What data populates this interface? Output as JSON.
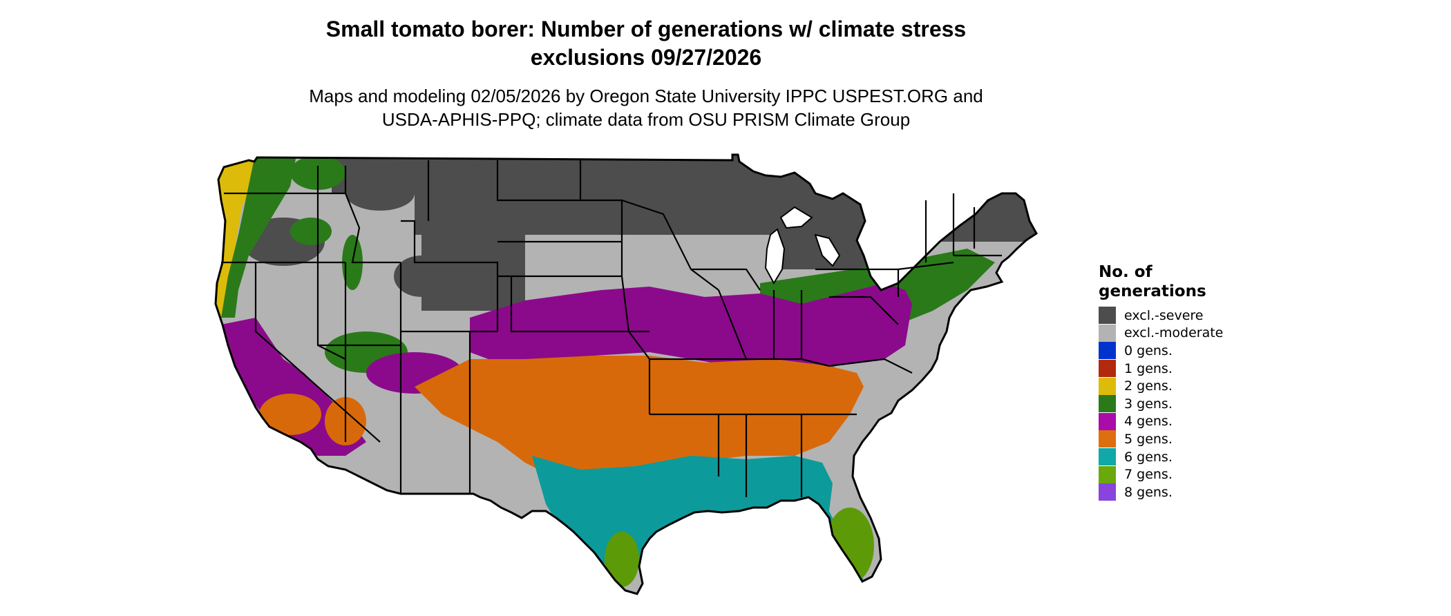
{
  "title_line1": "Small tomato borer: Number of generations w/ climate stress",
  "title_line2": "exclusions 09/27/2026",
  "subtitle_line1": "Maps and modeling 02/05/2026 by Oregon State University IPPC USPEST.ORG and",
  "subtitle_line2": "USDA-APHIS-PPQ; climate data from OSU PRISM Climate Group",
  "legend": {
    "title": "No. of generations",
    "items": [
      {
        "label": "excl.-severe",
        "color": "#4d4d4d"
      },
      {
        "label": "excl.-moderate",
        "color": "#b3b3b3"
      },
      {
        "label": "0 gens.",
        "color": "#0033cc"
      },
      {
        "label": "1 gens.",
        "color": "#b22a0e"
      },
      {
        "label": "2 gens.",
        "color": "#ddbb0a"
      },
      {
        "label": "3 gens.",
        "color": "#2a7a1a"
      },
      {
        "label": "4 gens.",
        "color": "#aa0caa"
      },
      {
        "label": "5 gens.",
        "color": "#dd6f10"
      },
      {
        "label": "6 gens.",
        "color": "#10a8a8"
      },
      {
        "label": "7 gens.",
        "color": "#6aa80c"
      },
      {
        "label": "8 gens.",
        "color": "#8844dd"
      }
    ]
  }
}
